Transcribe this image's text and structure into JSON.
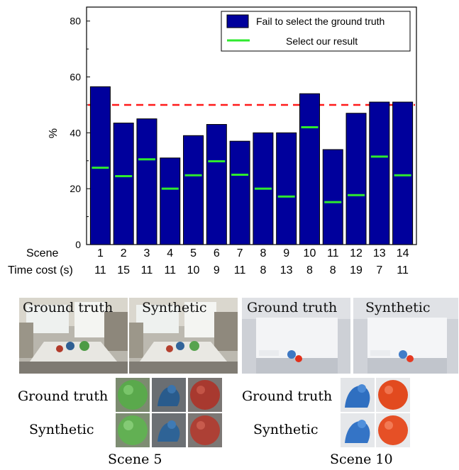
{
  "chart_data": {
    "type": "bar",
    "title": "",
    "xlabel": "",
    "ylabel": "%",
    "ylim": [
      0,
      85
    ],
    "yticks": [
      0,
      20,
      40,
      60,
      80
    ],
    "categories": [
      "1",
      "2",
      "3",
      "4",
      "5",
      "6",
      "7",
      "8",
      "9",
      "10",
      "11",
      "12",
      "13",
      "14"
    ],
    "row_labels": {
      "scene": "Scene",
      "time": "Time cost (s)"
    },
    "time_cost": [
      "11",
      "15",
      "11",
      "11",
      "10",
      "9",
      "11",
      "8",
      "13",
      "8",
      "8",
      "19",
      "7",
      "11"
    ],
    "series": [
      {
        "name": "Fail to select the ground truth",
        "type": "bar",
        "values": [
          56.5,
          43.5,
          45,
          31,
          39,
          43,
          37,
          40,
          40,
          54,
          34,
          47,
          51,
          51
        ]
      },
      {
        "name": "Select our result",
        "type": "marker",
        "values": [
          27.5,
          24.5,
          30.5,
          20,
          24.8,
          29.8,
          25,
          20,
          17.2,
          42,
          15.2,
          17.7,
          31.5,
          24.8
        ]
      }
    ],
    "reference_line": 50,
    "legend_position": "top-right",
    "colors": {
      "bar": "#00009c",
      "marker": "#2eea2e",
      "reference": "#ff1a1a"
    }
  },
  "figure": {
    "scene5": {
      "photo_labels": [
        "Ground truth",
        "Synthetic"
      ],
      "row_labels": [
        "Ground truth",
        "Synthetic"
      ],
      "caption": "Scene 5"
    },
    "scene10": {
      "photo_labels": [
        "Ground truth",
        "Synthetic"
      ],
      "row_labels": [
        "Ground truth",
        "Synthetic"
      ],
      "caption": "Scene 10"
    }
  }
}
